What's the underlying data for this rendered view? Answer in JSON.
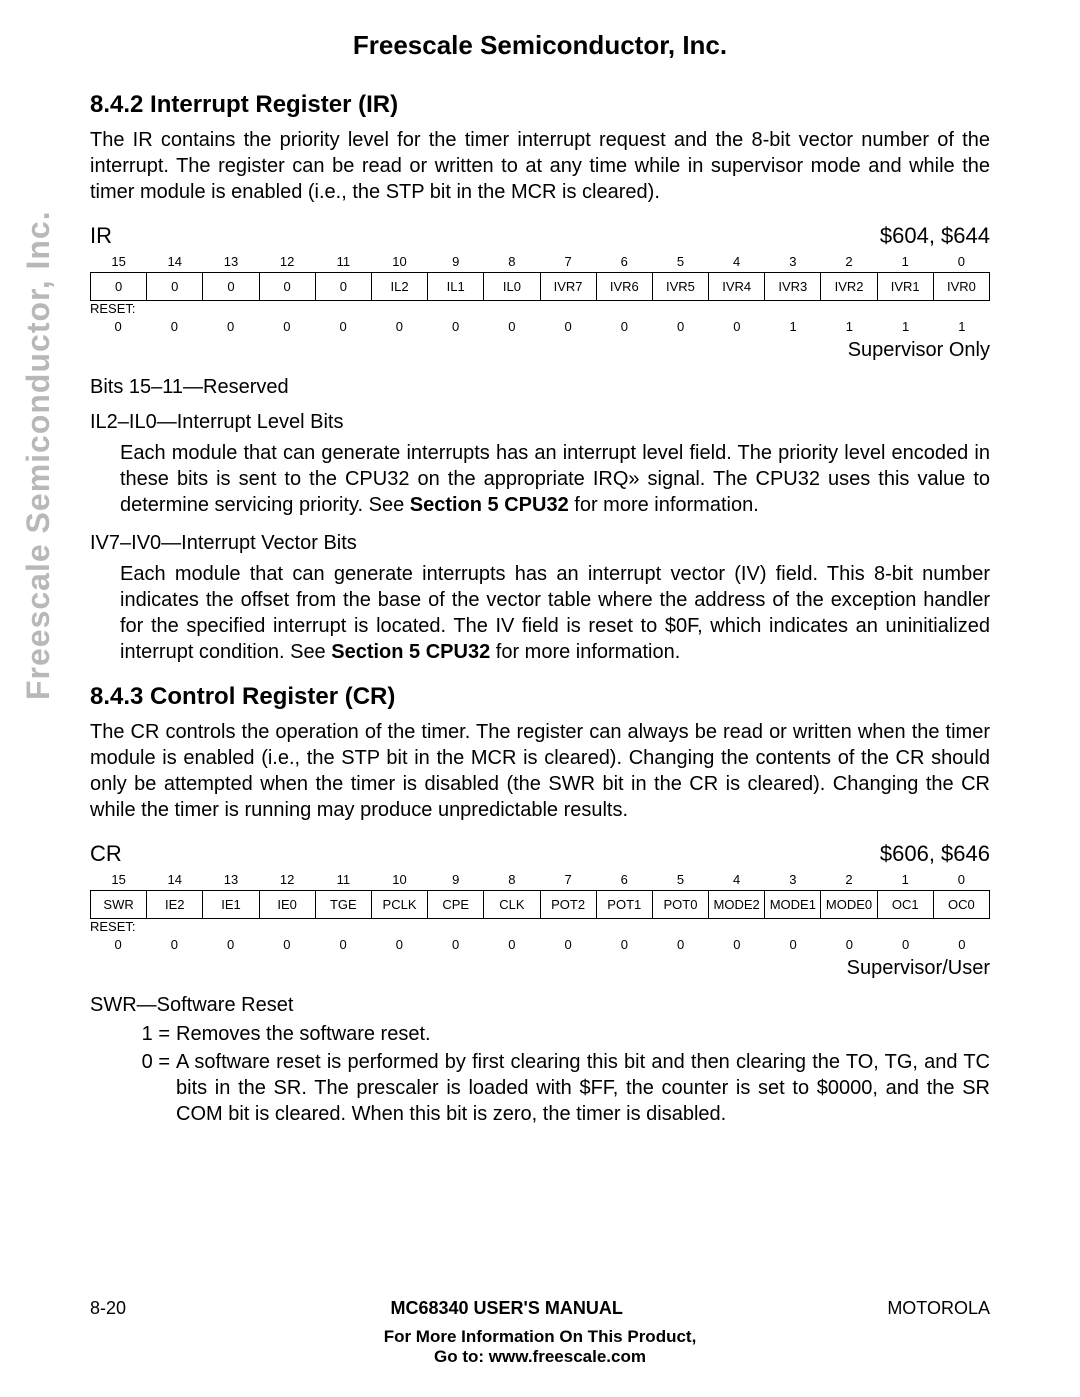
{
  "sideLabel": "Freescale Semiconductor, Inc.",
  "topHeader": "Freescale Semiconductor, Inc.",
  "section1": {
    "heading": "8.4.2 Interrupt Register (IR)",
    "intro": "The IR contains the priority level for the timer interrupt request and the 8-bit vector number of the interrupt. The register can be read or written to at any time while in supervisor mode and while the timer module is enabled (i.e., the STP bit in the MCR is cleared).",
    "regName": "IR",
    "regAddr": "$604, $644",
    "bitNums": [
      "15",
      "14",
      "13",
      "12",
      "11",
      "10",
      "9",
      "8",
      "7",
      "6",
      "5",
      "4",
      "3",
      "2",
      "1",
      "0"
    ],
    "bitNames": [
      "0",
      "0",
      "0",
      "0",
      "0",
      "IL2",
      "IL1",
      "IL0",
      "IVR7",
      "IVR6",
      "IVR5",
      "IVR4",
      "IVR3",
      "IVR2",
      "IVR1",
      "IVR0"
    ],
    "resetLabel": "RESET:",
    "resetVals": [
      "0",
      "0",
      "0",
      "0",
      "0",
      "0",
      "0",
      "0",
      "0",
      "0",
      "0",
      "0",
      "1",
      "1",
      "1",
      "1"
    ],
    "access": "Supervisor Only",
    "field1": "Bits 15–11—Reserved",
    "field2Title": "IL2–IL0—Interrupt Level Bits",
    "field2Body1": "Each module that can generate interrupts has an interrupt level field. The priority level encoded in these bits is sent to the CPU32 on the appropriate IRQ» signal. The CPU32 uses this value to determine servicing priority. See ",
    "field2Bold": "Section 5 CPU32",
    "field2Body2": " for more information.",
    "field3Title": "IV7–IV0—Interrupt Vector Bits",
    "field3Body1": "Each module that can generate interrupts has an interrupt vector (IV) field. This 8-bit number indicates the offset from the base of the vector table where the address of the exception handler for the specified interrupt is located. The IV field is reset to $0F, which indicates an uninitialized interrupt condition. See ",
    "field3Bold": "Section 5 CPU32",
    "field3Body2": " for more information."
  },
  "section2": {
    "heading": "8.4.3 Control Register (CR)",
    "intro": "The CR controls the operation of the timer. The register can always be read or written when the timer module is enabled (i.e., the STP bit in the MCR is cleared). Changing the contents of the CR should only be attempted when the timer is disabled (the SWR bit in the CR is cleared). Changing the CR while the timer is running may produce unpredictable results.",
    "regName": "CR",
    "regAddr": "$606, $646",
    "bitNums": [
      "15",
      "14",
      "13",
      "12",
      "11",
      "10",
      "9",
      "8",
      "7",
      "6",
      "5",
      "4",
      "3",
      "2",
      "1",
      "0"
    ],
    "bitNames": [
      "SWR",
      "IE2",
      "IE1",
      "IE0",
      "TGE",
      "PCLK",
      "CPE",
      "CLK",
      "POT2",
      "POT1",
      "POT0",
      "MODE2",
      "MODE1",
      "MODE0",
      "OC1",
      "OC0"
    ],
    "resetLabel": "RESET:",
    "resetVals": [
      "0",
      "0",
      "0",
      "0",
      "0",
      "0",
      "0",
      "0",
      "0",
      "0",
      "0",
      "0",
      "0",
      "0",
      "0",
      "0"
    ],
    "access": "Supervisor/User",
    "field1Title": "SWR—Software Reset",
    "val1Key": "1 =",
    "val1Desc": "Removes the software reset.",
    "val0Key": "0 =",
    "val0Desc": "A software reset is performed by first clearing this bit and then clearing the TO, TG, and TC bits in the SR. The prescaler is loaded with $FF, the counter is set to $0000, and the SR COM bit is cleared. When this bit is zero, the timer is disabled."
  },
  "footer": {
    "left": "8-20",
    "center": "MC68340 USER'S MANUAL",
    "right": "MOTOROLA",
    "sub1": "For More Information On This Product,",
    "sub2": "Go to: www.freescale.com"
  }
}
